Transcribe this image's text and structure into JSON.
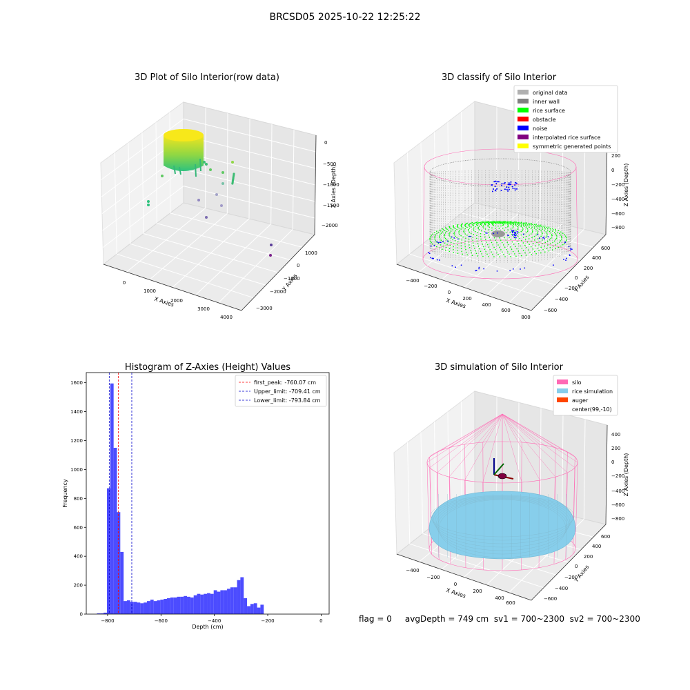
{
  "suptitle": "BRCSD05 2025-10-22 12:25:22",
  "status_line": "flag = 0     avgDepth = 749 cm  sv1 = 700~2300  sv2 = 700~2300",
  "colors": {
    "silo": "#ff69b4",
    "rice": "#87ceeb",
    "noise": "#0000ff",
    "rice_surface": "#00ff00",
    "inner_wall": "#808080",
    "hist_bar": "#4c4cff",
    "peak": "#ff0000",
    "limit": "#0000cc"
  },
  "chart_data": [
    {
      "type": "scatter",
      "title": "3D Plot of Silo Interior(row data)",
      "xlabel": "X Axies",
      "ylabel": "Y Axies",
      "zlabel": "Z Axies (Depth)",
      "x_ticks": [
        "0",
        "1000",
        "2000",
        "3000",
        "4000"
      ],
      "y_ticks": [
        "1000",
        "0",
        "−1000",
        "−2000",
        "−3000"
      ],
      "z_ticks": [
        "0",
        "−500",
        "−1000",
        "−1500",
        "−2000"
      ],
      "colormap": "viridis"
    },
    {
      "type": "scatter",
      "title": "3D classify of Silo Interior",
      "xlabel": "X Axies",
      "ylabel": "Y Axies",
      "zlabel": "Z Axies (Depth)",
      "x_ticks": [
        "−400",
        "−200",
        "0",
        "200",
        "400",
        "600",
        "800"
      ],
      "y_ticks": [
        "600",
        "400",
        "200",
        "0",
        "−200",
        "−400",
        "−600"
      ],
      "z_ticks": [
        "200",
        "0",
        "−200",
        "−400",
        "−600",
        "−800"
      ],
      "legend_position": "top-right",
      "legend": [
        {
          "label": "original data",
          "color": "#b0b0b0"
        },
        {
          "label": "inner wall",
          "color": "#808080"
        },
        {
          "label": "rice surface",
          "color": "#00ff00"
        },
        {
          "label": "obstacle",
          "color": "#ff0000"
        },
        {
          "label": "noise",
          "color": "#0000ff"
        },
        {
          "label": "interpolated rice surface",
          "color": "#800080"
        },
        {
          "label": "symmetric generated points",
          "color": "#ffff00"
        }
      ]
    },
    {
      "type": "bar",
      "title": "Histogram of Z-Axies (Height) Values",
      "xlabel": "Depth (cm)",
      "ylabel": "Frequency",
      "xlim": [
        -880,
        30
      ],
      "ylim": [
        0,
        1670
      ],
      "x_ticks": [
        -800,
        -600,
        -400,
        -200,
        0
      ],
      "x_tick_labels": [
        "−800",
        "−600",
        "−400",
        "−200",
        "0"
      ],
      "y_ticks": [
        0,
        200,
        400,
        600,
        800,
        1000,
        1200,
        1400,
        1600
      ],
      "bin_width": 12.5,
      "bin_start": -840,
      "values": [
        5,
        5,
        10,
        870,
        1595,
        1150,
        705,
        430,
        90,
        95,
        85,
        85,
        80,
        75,
        80,
        90,
        100,
        90,
        95,
        100,
        105,
        110,
        115,
        115,
        120,
        120,
        125,
        120,
        115,
        130,
        140,
        135,
        140,
        145,
        140,
        165,
        155,
        165,
        165,
        175,
        185,
        185,
        235,
        255,
        110,
        55,
        70,
        75,
        45,
        65
      ],
      "vlines": [
        {
          "x": -760.07,
          "style": "peak"
        },
        {
          "x": -709.41,
          "style": "limit"
        },
        {
          "x": -793.84,
          "style": "limit"
        }
      ],
      "legend_position": "top-right",
      "legend": [
        {
          "label": "first_peak: -760.07 cm",
          "style": "peak"
        },
        {
          "label": "Upper_limit: -709.41 cm",
          "style": "limit"
        },
        {
          "label": "Lower_limit: -793.84 cm",
          "style": "limit"
        }
      ]
    },
    {
      "type": "area",
      "title": "3D simulation of Silo Interior",
      "xlabel": "X Axies",
      "ylabel": "Y Axies",
      "zlabel": "Z Axies (Depth)",
      "x_ticks": [
        "−400",
        "−200",
        "0",
        "200",
        "400",
        "600"
      ],
      "y_ticks": [
        "600",
        "400",
        "200",
        "0",
        "−200",
        "−400",
        "−600"
      ],
      "z_ticks": [
        "400",
        "200",
        "0",
        "−200",
        "−400",
        "−600",
        "−800"
      ],
      "legend_position": "top-right",
      "legend": [
        {
          "label": "silo",
          "color": "#ff69b4"
        },
        {
          "label": "rice simulation",
          "color": "#87ceeb"
        },
        {
          "label": "auger",
          "color": "#ff4500"
        },
        {
          "label": "center(99,-10)",
          "color": "#ffffff"
        }
      ]
    }
  ]
}
